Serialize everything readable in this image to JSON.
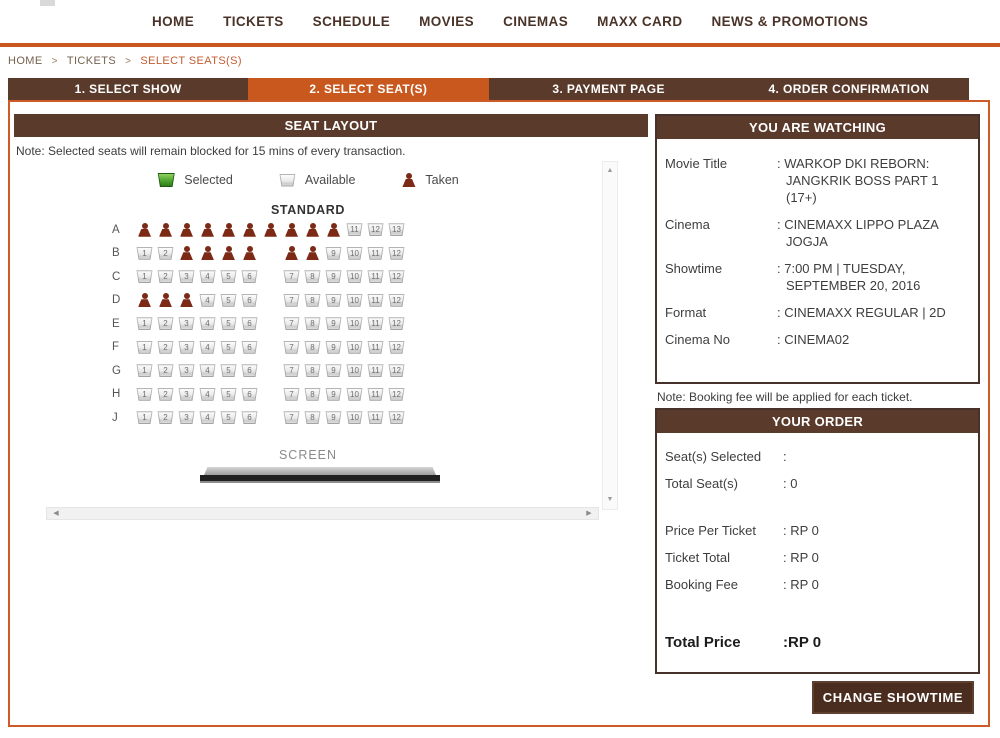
{
  "nav": {
    "items": [
      "HOME",
      "TICKETS",
      "SCHEDULE",
      "MOVIES",
      "CINEMAS",
      "MAXX CARD",
      "NEWS & PROMOTIONS"
    ]
  },
  "breadcrumb": {
    "items": [
      "HOME",
      "TICKETS",
      "SELECT SEATS(S)"
    ],
    "separator": ">"
  },
  "steps": {
    "items": [
      {
        "label": "1. SELECT SHOW",
        "active": false
      },
      {
        "label": "2. SELECT SEAT(S)",
        "active": true
      },
      {
        "label": "3. PAYMENT PAGE",
        "active": false
      },
      {
        "label": "4. ORDER CONFIRMATION",
        "active": false
      }
    ]
  },
  "seat_panel": {
    "title": "SEAT LAYOUT",
    "note": "Note: Selected seats will remain blocked for 15 mins of every transaction.",
    "legend": [
      {
        "label": "Selected",
        "type": "selected"
      },
      {
        "label": "Available",
        "type": "available"
      },
      {
        "label": "Taken",
        "type": "taken"
      }
    ],
    "section_label": "STANDARD",
    "screen_label": "SCREEN",
    "rows": [
      {
        "label": "A",
        "count": 13,
        "gap_after": 0,
        "taken": [
          1,
          2,
          3,
          4,
          5,
          6,
          7,
          8,
          9,
          10
        ]
      },
      {
        "label": "B",
        "count": 12,
        "gap_after": 6,
        "taken": [
          3,
          4,
          5,
          6,
          7,
          8
        ]
      },
      {
        "label": "C",
        "count": 12,
        "gap_after": 6,
        "taken": []
      },
      {
        "label": "D",
        "count": 12,
        "gap_after": 6,
        "taken": [
          1,
          2,
          3
        ]
      },
      {
        "label": "E",
        "count": 12,
        "gap_after": 6,
        "taken": []
      },
      {
        "label": "F",
        "count": 12,
        "gap_after": 6,
        "taken": []
      },
      {
        "label": "G",
        "count": 12,
        "gap_after": 6,
        "taken": []
      },
      {
        "label": "H",
        "count": 12,
        "gap_after": 6,
        "taken": []
      },
      {
        "label": "J",
        "count": 12,
        "gap_after": 6,
        "taken": []
      }
    ]
  },
  "watching": {
    "title": "YOU ARE WATCHING",
    "rows": [
      {
        "label": "Movie Title",
        "value": "WARKOP DKI REBORN: JANGKRIK BOSS PART 1 (17+)"
      },
      {
        "label": "Cinema",
        "value": "CINEMAXX LIPPO PLAZA JOGJA"
      },
      {
        "label": "Showtime",
        "value": "7:00 PM | TUESDAY, SEPTEMBER 20, 2016"
      },
      {
        "label": "Format",
        "value": "CINEMAXX REGULAR | 2D"
      },
      {
        "label": "Cinema No",
        "value": "CINEMA02"
      }
    ]
  },
  "order_note": "Note: Booking fee will be applied for each ticket.",
  "order": {
    "title": "YOUR ORDER",
    "rows": [
      {
        "label": "Seat(s) Selected",
        "value": ""
      },
      {
        "label": "Total Seat(s)",
        "value": "0"
      },
      {
        "spacer": true
      },
      {
        "label": "Price Per Ticket",
        "value": "RP 0"
      },
      {
        "label": "Ticket Total",
        "value": "RP 0"
      },
      {
        "label": "Booking Fee",
        "value": "RP 0"
      },
      {
        "spacer": true
      },
      {
        "label": "Total Price",
        "value": "RP 0",
        "emphasis": true
      }
    ]
  },
  "actions": {
    "change_showtime": "CHANGE SHOWTIME"
  },
  "colors": {
    "accent_orange": "#c8581d",
    "dark_brown": "#5a3a2b",
    "nav_text": "#4a3328",
    "box_border_orange": "#cd5b28",
    "panel_border_brown": "#46322a",
    "button_brown": "#4a2d1f",
    "taken_seat": "#7c2a15",
    "selected_seat_green": "#3f9e28",
    "breadcrumb_active": "#c05d33",
    "text_dark": "#3e3e3e"
  }
}
